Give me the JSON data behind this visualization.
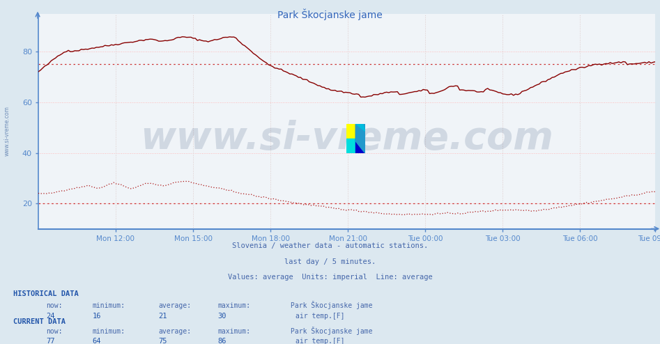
{
  "title": "Park Škocjanske jame",
  "bg_color": "#dce8f0",
  "plot_bg_color": "#f0f4f8",
  "title_color": "#3366bb",
  "axis_color": "#5588cc",
  "grid_color": "#ffbbbb",
  "vgrid_color": "#ddcccc",
  "line1_color": "#880000",
  "line2_color": "#aa1111",
  "hline_color": "#cc3333",
  "ylim": [
    10,
    95
  ],
  "yticks": [
    20,
    40,
    60,
    80
  ],
  "hline1_value": 75.0,
  "hline2_value": 20.0,
  "footer_color": "#4466aa",
  "watermark": "www.si-vreme.com",
  "watermark_color": "#1a3a6a",
  "watermark_alpha": 0.15,
  "side_text": "www.si-vreme.com",
  "side_color": "#5577aa",
  "hist_color": "#2255aa",
  "curr_color": "#2255aa",
  "data_text_color": "#4466aa",
  "num_color": "#2255aa",
  "n_points": 288,
  "xtick_positions": [
    36,
    72,
    108,
    144,
    180,
    216,
    252,
    287
  ],
  "xtick_labels": [
    "Mon 12:00",
    "Mon 15:00",
    "Mon 18:00",
    "Mon 21:00",
    "Tue 00:00",
    "Tue 03:00",
    "Tue 06:00",
    "Tue 09:00"
  ]
}
